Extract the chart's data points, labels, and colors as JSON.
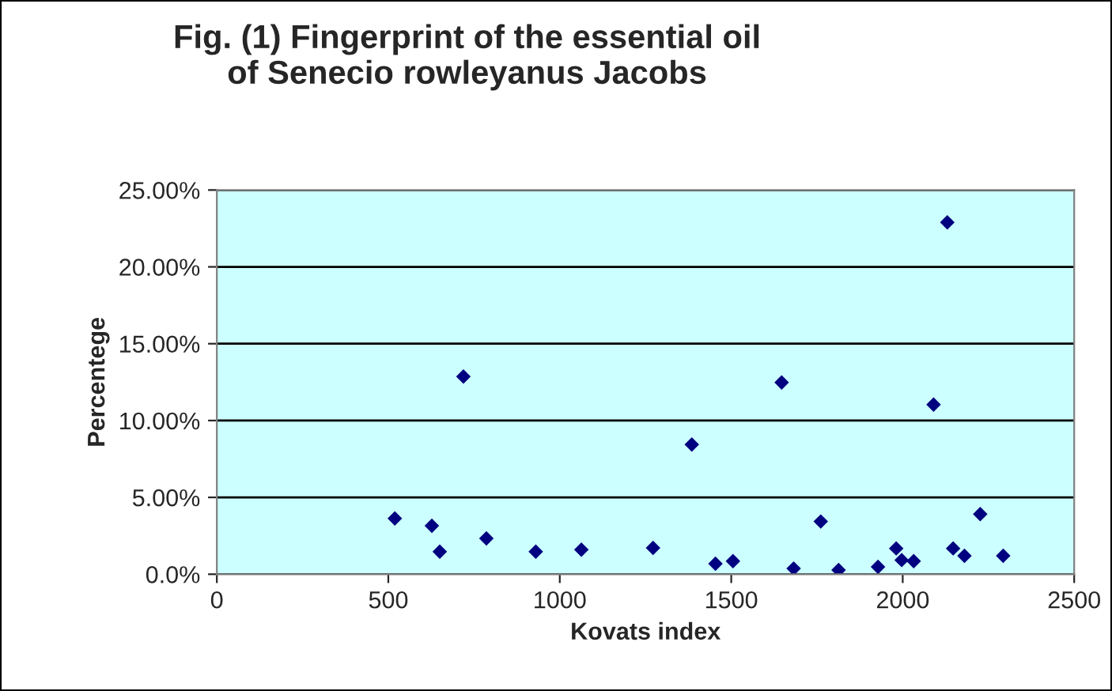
{
  "chart_data": {
    "type": "scatter",
    "title": "Fig. (1) Fingerprint of the essential oil\nof Senecio rowleyanus Jacobs",
    "xlabel": "Kovats index",
    "ylabel": "Percentege",
    "x": [
      519,
      627,
      650,
      719,
      786,
      930,
      1063,
      1272,
      1385,
      1454,
      1505,
      1647,
      1682,
      1761,
      1813,
      1928,
      1981,
      1997,
      2032,
      2090,
      2130,
      2147,
      2180,
      2226,
      2293
    ],
    "series": [
      {
        "color": "#000080",
        "values": [
          3.63,
          3.15,
          1.47,
          12.86,
          2.33,
          1.47,
          1.6,
          1.71,
          8.44,
          0.68,
          0.85,
          12.48,
          0.37,
          3.43,
          0.27,
          0.48,
          1.68,
          0.92,
          0.85,
          11.04,
          22.9,
          1.68,
          1.2,
          3.91,
          1.2
        ]
      }
    ],
    "xlim": [
      0,
      2500
    ],
    "xticks": [
      0,
      500,
      1000,
      1500,
      2000,
      2500
    ],
    "ylim": [
      0,
      25
    ],
    "yticks": [
      {
        "value": 0,
        "label": "0.0%"
      },
      {
        "value": 5,
        "label": "5.00%"
      },
      {
        "value": 10,
        "label": "10.00%"
      },
      {
        "value": 15,
        "label": "15.00%"
      },
      {
        "value": 20,
        "label": "20.00%"
      },
      {
        "value": 25,
        "label": "25.00%"
      }
    ],
    "grid": "y",
    "marker": "diamond",
    "legend": false
  }
}
